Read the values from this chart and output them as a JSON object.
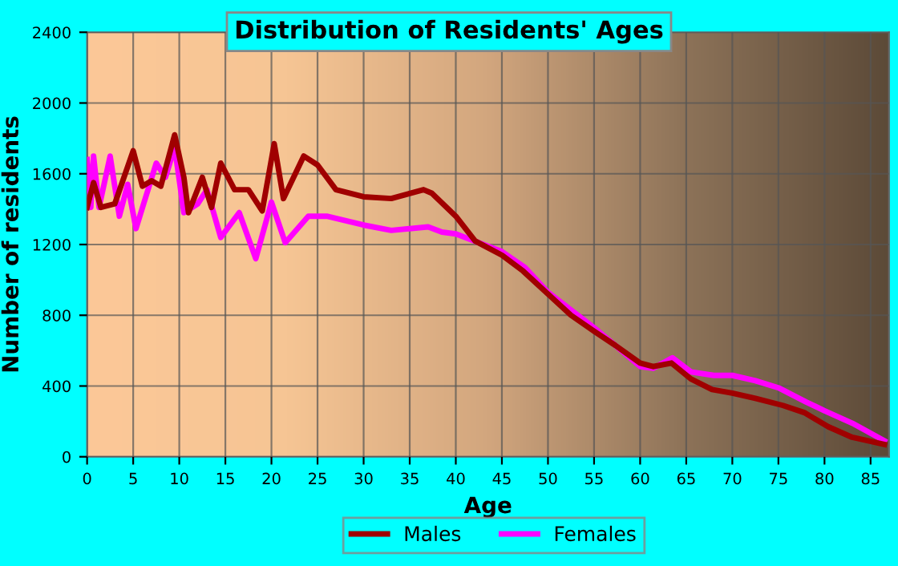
{
  "chart_data": {
    "type": "line",
    "title": "Distribution of Residents' Ages",
    "xlabel": "Age",
    "ylabel": "Number of residents",
    "xlim": [
      0,
      87
    ],
    "xticks": [
      0,
      5,
      10,
      15,
      20,
      25,
      30,
      35,
      40,
      45,
      50,
      55,
      60,
      65,
      70,
      75,
      80,
      85
    ],
    "ylim": [
      0,
      2400
    ],
    "yticks": [
      0,
      400,
      800,
      1200,
      1600,
      2000,
      2400
    ],
    "grid": true,
    "legend": "bottom",
    "marker": "none",
    "line_style": "solid",
    "series": [
      {
        "name": "Males",
        "color": "#a00000",
        "x": [
          0,
          0.7,
          1.5,
          3,
          5,
          6,
          7,
          8,
          9.5,
          10.5,
          11,
          12.5,
          13.5,
          14.5,
          16,
          17.5,
          19,
          20.3,
          21.3,
          23.5,
          25,
          27,
          30,
          33,
          36.5,
          37.4,
          40,
          42.1,
          45,
          47.3,
          50,
          52.5,
          55,
          57.3,
          60,
          61.4,
          63.4,
          65.5,
          67.8,
          70,
          72.5,
          75.5,
          77.8,
          80.4,
          83,
          86.5
        ],
        "values": [
          1410,
          1550,
          1410,
          1430,
          1730,
          1530,
          1560,
          1530,
          1820,
          1580,
          1380,
          1580,
          1410,
          1660,
          1510,
          1510,
          1390,
          1770,
          1460,
          1700,
          1650,
          1510,
          1470,
          1460,
          1510,
          1490,
          1360,
          1220,
          1140,
          1050,
          920,
          800,
          710,
          630,
          530,
          510,
          530,
          440,
          380,
          360,
          330,
          290,
          250,
          170,
          110,
          70
        ]
      },
      {
        "name": "Females",
        "color": "#ff00ff",
        "x": [
          0,
          0.4,
          0.7,
          1.3,
          2.5,
          3.5,
          4.4,
          5.3,
          7.5,
          8.5,
          9.5,
          10.5,
          12,
          13,
          14.5,
          16.5,
          18.3,
          20,
          21.5,
          24,
          26,
          30,
          33,
          37,
          38.5,
          40,
          42,
          45,
          47.5,
          50,
          55,
          57.3,
          60,
          61.4,
          63.5,
          65.5,
          68,
          70,
          72.5,
          75,
          78,
          80,
          83,
          86.5
        ],
        "values": [
          1680,
          1410,
          1700,
          1410,
          1700,
          1360,
          1540,
          1290,
          1660,
          1580,
          1750,
          1380,
          1430,
          1510,
          1240,
          1380,
          1120,
          1440,
          1210,
          1360,
          1360,
          1310,
          1280,
          1300,
          1270,
          1260,
          1220,
          1160,
          1070,
          930,
          730,
          630,
          510,
          500,
          560,
          480,
          460,
          460,
          430,
          390,
          310,
          260,
          190,
          90
        ]
      }
    ]
  }
}
